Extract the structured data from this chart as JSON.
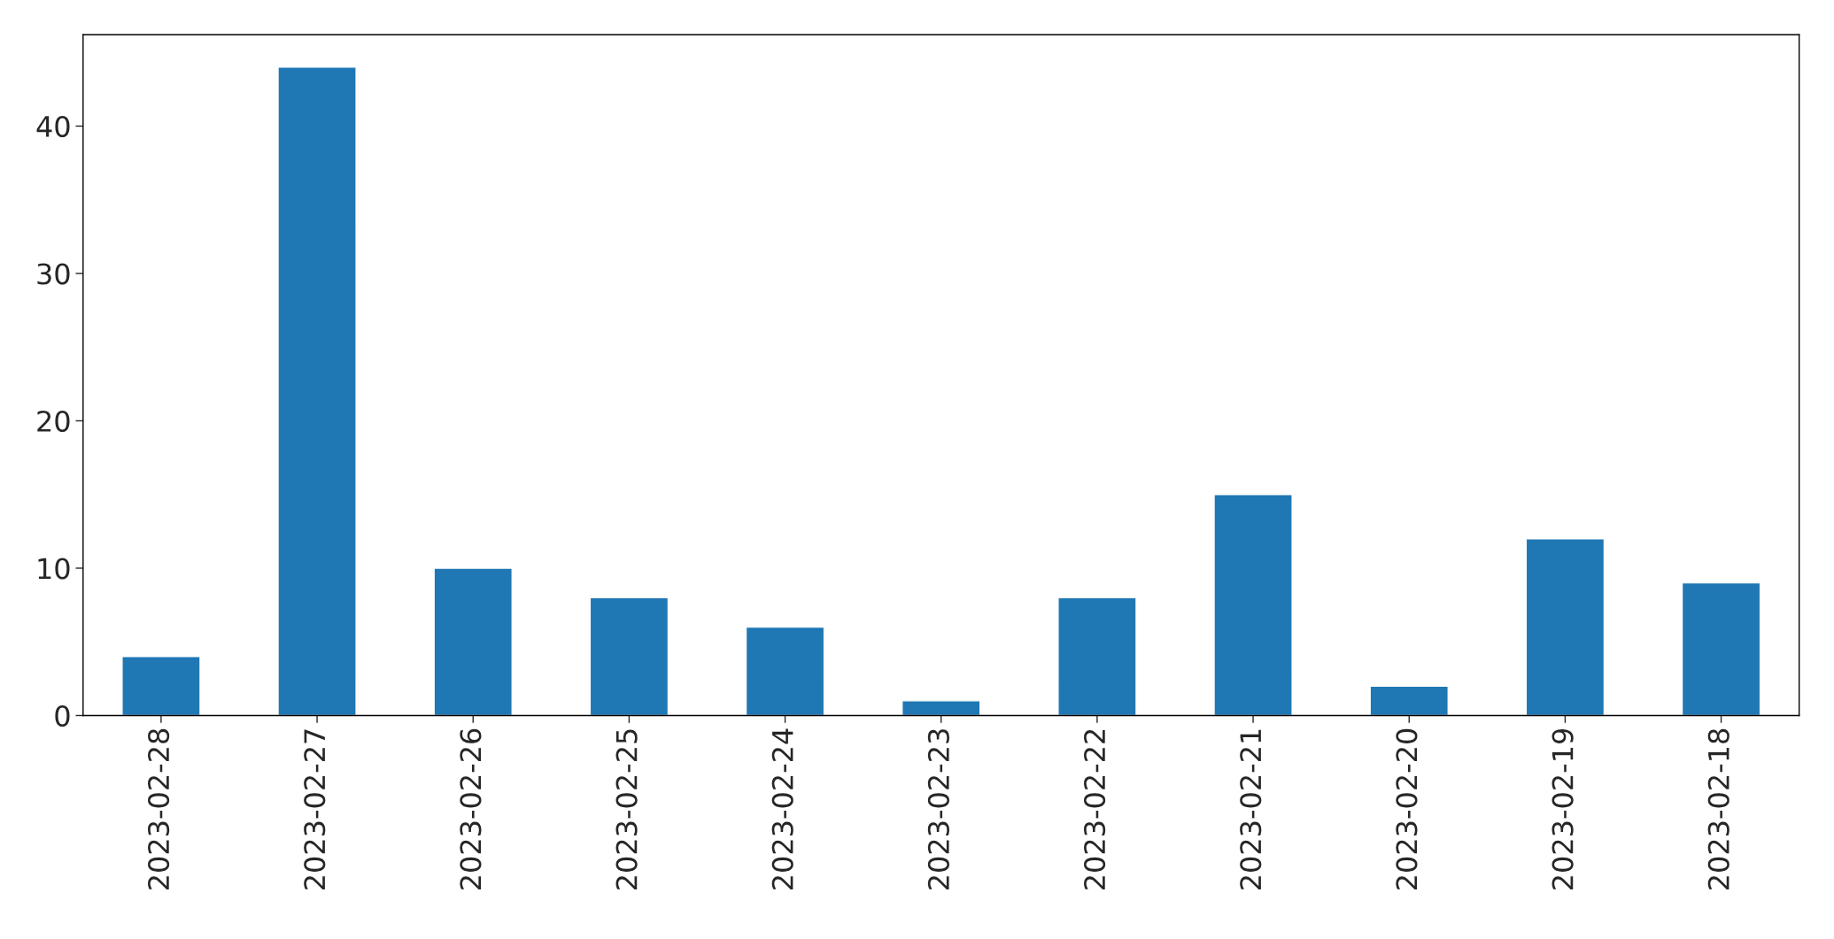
{
  "chart_data": {
    "type": "bar",
    "categories": [
      "2023-02-28",
      "2023-02-27",
      "2023-02-26",
      "2023-02-25",
      "2023-02-24",
      "2023-02-23",
      "2023-02-22",
      "2023-02-21",
      "2023-02-20",
      "2023-02-19",
      "2023-02-18"
    ],
    "values": [
      4,
      44,
      10,
      8,
      6,
      1,
      8,
      15,
      2,
      12,
      9
    ],
    "color": "#1f77b4",
    "ylim": [
      0,
      46.2
    ],
    "yticks": [
      0,
      10,
      20,
      30,
      40
    ],
    "grid": false,
    "legend": false
  }
}
